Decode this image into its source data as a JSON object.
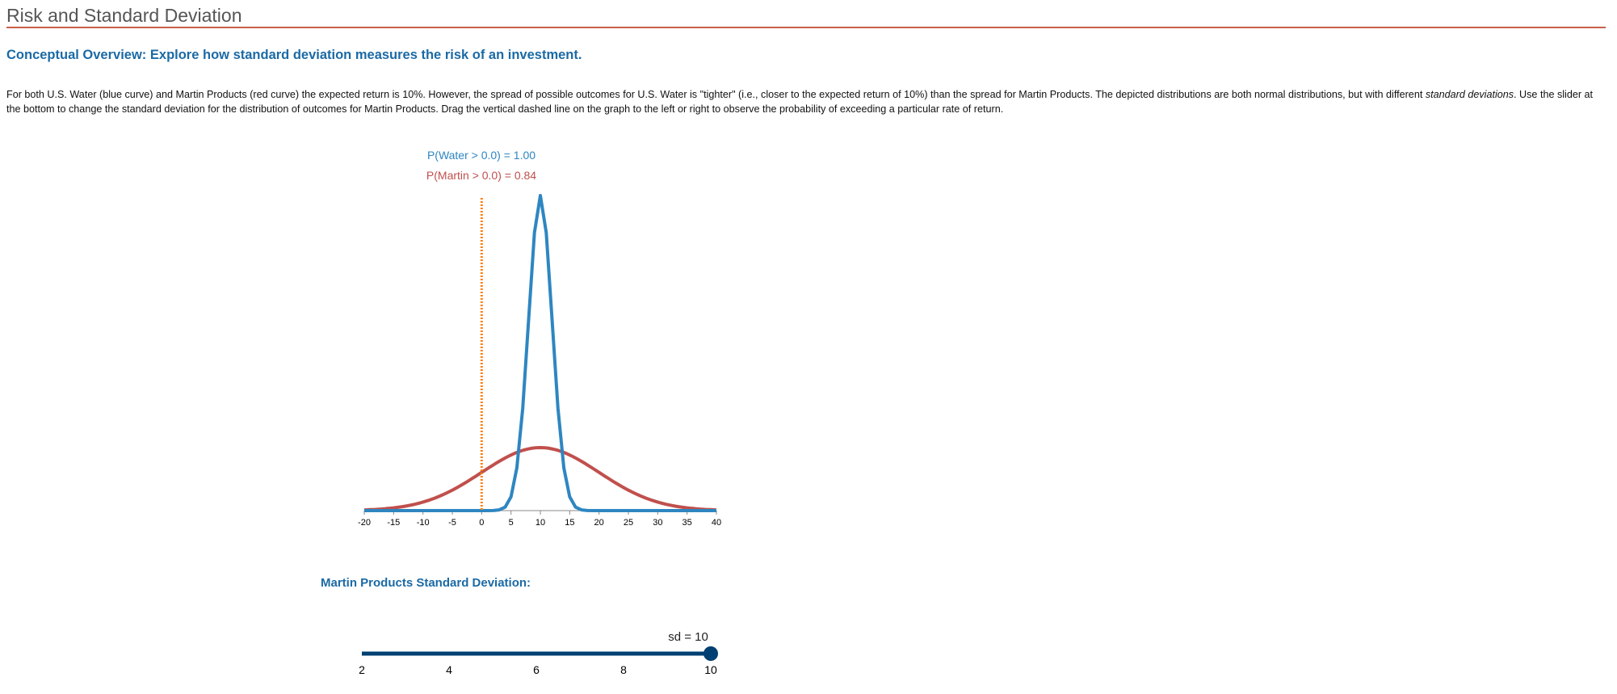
{
  "page": {
    "title": "Risk and Standard Deviation",
    "heading": "Conceptual Overview: Explore how standard deviation measures the risk of an investment.",
    "paragraph_part1": "For both U.S. Water (blue curve) and Martin Products (red curve) the expected return is 10%. However, the spread of possible outcomes for U.S. Water is \"tighter\" (i.e., closer to the expected return of 10%) than the spread for Martin Products. The depicted distributions are both normal distributions, but with different ",
    "paragraph_italic": "standard deviations",
    "paragraph_part2": ". Use the slider at the bottom to change the standard deviation for the distribution of outcomes for Martin Products. Drag the vertical dashed line on the graph to the left or right to observe the probability of exceeding a particular rate of return."
  },
  "chart_data": {
    "type": "line",
    "xlim": [
      -20,
      40
    ],
    "ylim": [
      0,
      0.2
    ],
    "x_ticks": [
      "-20",
      "-15",
      "-10",
      "-5",
      "0",
      "5",
      "10",
      "15",
      "20",
      "25",
      "30",
      "35",
      "40"
    ],
    "threshold": 0.0,
    "threshold_color": "#ff7f0e",
    "series": [
      {
        "key": "water",
        "mean": 10,
        "sd": 2,
        "color": "#2e86c1"
      },
      {
        "key": "martin",
        "mean": 10,
        "sd": 10,
        "color": "#c0504d"
      }
    ],
    "annotations": {
      "water": "P(Water > 0.0) = 1.00",
      "martin": "P(Martin > 0.0) = 0.84"
    }
  },
  "slider": {
    "label": "Martin Products Standard Deviation:",
    "min": 2,
    "max": 10,
    "value": 10,
    "value_label": "sd = 10",
    "ticks": [
      "2",
      "4",
      "6",
      "8",
      "10"
    ],
    "color": "#003f72"
  }
}
